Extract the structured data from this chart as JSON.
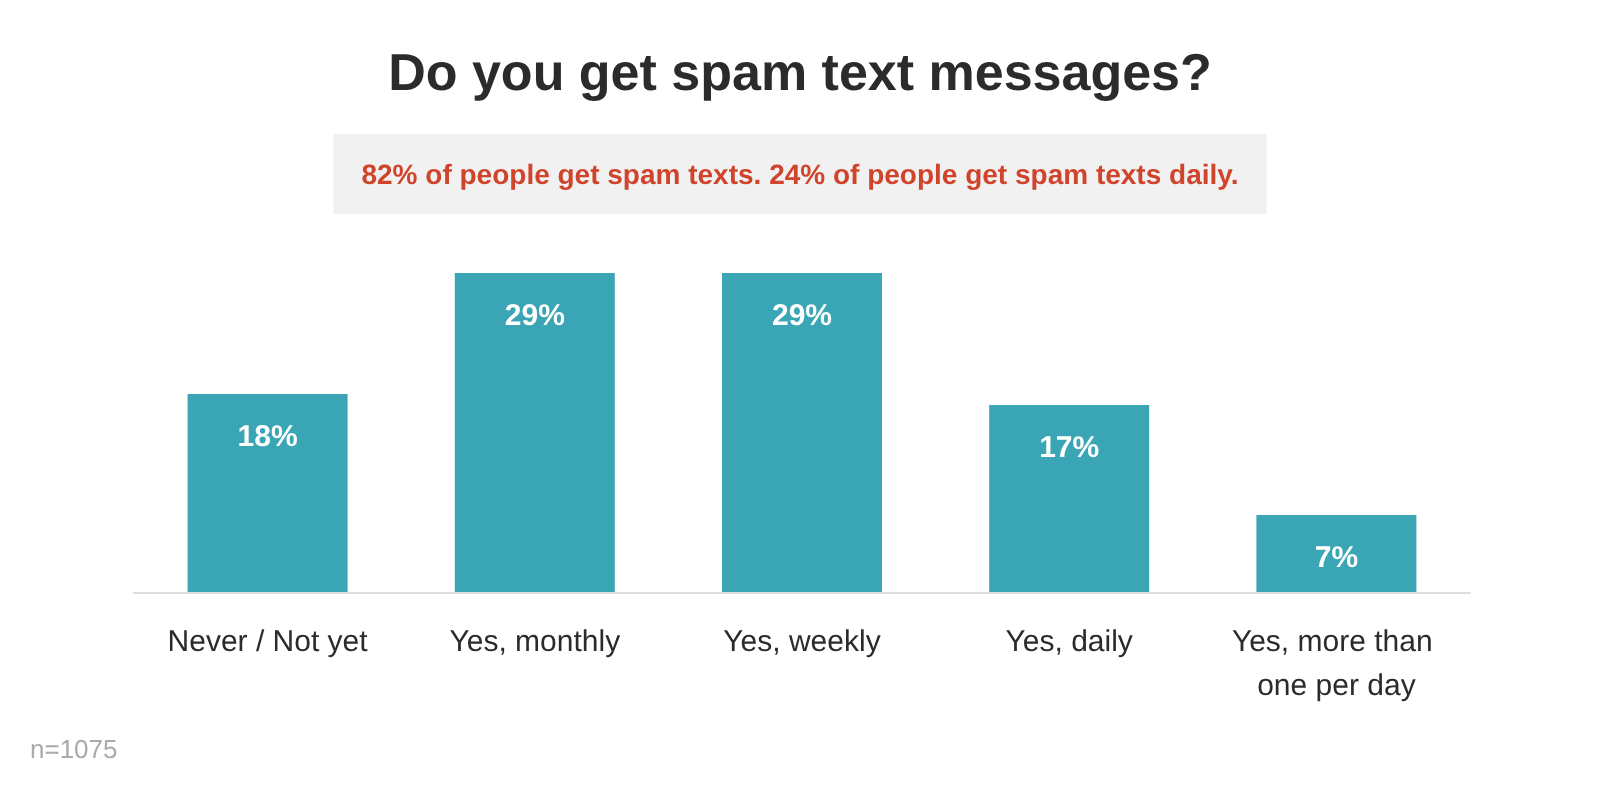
{
  "chart_data": {
    "type": "bar",
    "title": "Do you get spam text messages?",
    "subtitle": "82% of people get spam texts. 24% of people get spam texts daily.",
    "categories": [
      "Never / Not yet",
      "Yes, monthly",
      "Yes, weekly",
      "Yes, daily",
      "Yes, more than one per day"
    ],
    "values": [
      18,
      29,
      29,
      17,
      7
    ],
    "value_labels": [
      "18%",
      "29%",
      "29%",
      "17%",
      "7%"
    ],
    "color": "#3aa6b5",
    "tick_labels": "x",
    "annotations": [
      "n=1075"
    ]
  }
}
